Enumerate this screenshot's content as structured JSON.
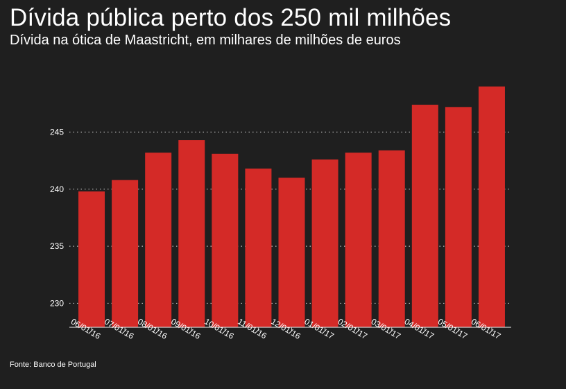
{
  "title": "Dívida pública perto dos 250 mil milhões",
  "subtitle": "Dívida na ótica de Maastricht, em milhares de milhões de euros",
  "source": "Fonte: Banco de Portugal",
  "colors": {
    "background": "#1f1f1f",
    "bar": "#d42a27",
    "text": "#ffffff",
    "grid": "#bbbbbb"
  },
  "chart_data": {
    "type": "bar",
    "title": "Dívida pública perto dos 250 mil milhões",
    "subtitle": "Dívida na ótica de Maastricht, em milhares de milhões de euros",
    "xlabel": "",
    "ylabel": "",
    "categories": [
      "06/01/16",
      "07/01/16",
      "08/01/16",
      "09/01/16",
      "10/01/16",
      "11/01/16",
      "12/01/16",
      "01/01/17",
      "02/01/17",
      "03/01/17",
      "04/01/17",
      "05/01/17",
      "06/01/17"
    ],
    "values": [
      239.8,
      240.8,
      243.2,
      244.3,
      243.1,
      241.8,
      241.0,
      242.6,
      243.2,
      243.4,
      247.4,
      247.2,
      249.0
    ],
    "yticks": [
      230,
      235,
      240,
      245
    ],
    "ylim": [
      227.9,
      250.5
    ],
    "grid": true,
    "legend": "none"
  }
}
